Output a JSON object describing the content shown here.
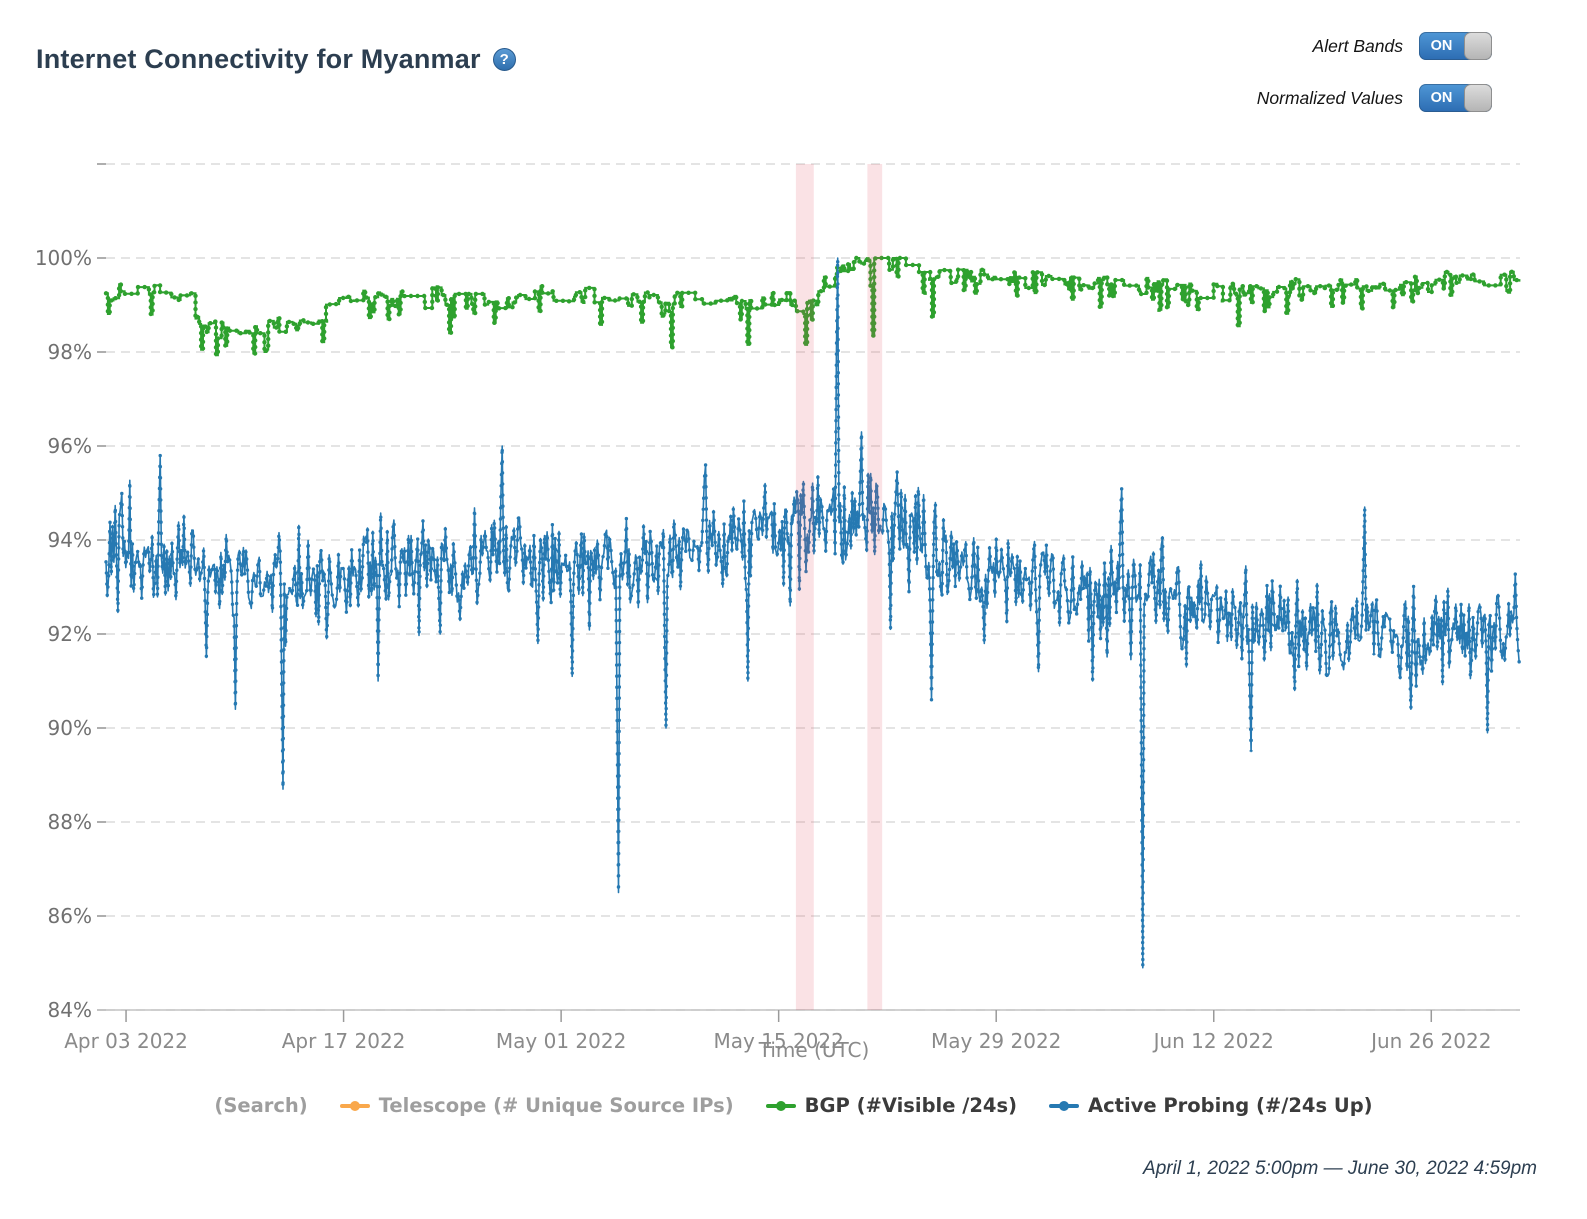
{
  "header": {
    "title": "Internet Connectivity for Myanmar",
    "help_text": "?"
  },
  "toggles": [
    {
      "label": "Alert Bands",
      "state": "ON"
    },
    {
      "label": "Normalized Values",
      "state": "ON"
    }
  ],
  "legend": [
    {
      "label": "(Search)",
      "text_color": "#9e9e9e",
      "marker_color": null
    },
    {
      "label": "Telescope (# Unique Source IPs)",
      "text_color": "#9e9e9e",
      "marker_color": "#f9a84c"
    },
    {
      "label": "BGP (#Visible /24s)",
      "text_color": "#3b3b3b",
      "marker_color": "#2ea12e"
    },
    {
      "label": "Active Probing (#/24s Up)",
      "text_color": "#3b3b3b",
      "marker_color": "#2679b2"
    }
  ],
  "footer": {
    "time_range": "April 1, 2022 5:00pm — June 30, 2022 4:59pm"
  },
  "chart_data": {
    "type": "line",
    "title": "Internet Connectivity for Myanmar",
    "xlabel": "Time (UTC)",
    "ylabel": "",
    "x_range_days": 91,
    "x_start": "Apr 1 2022 5:00pm UTC",
    "x_end": "Jun 30 2022 4:59pm UTC",
    "ylim": [
      84,
      102.2
    ],
    "grid": "dashed-horizontal",
    "legend_position": "bottom",
    "x_ticks": [
      {
        "label": "Apr 03 2022",
        "day": 1.29
      },
      {
        "label": "Apr 17 2022",
        "day": 15.29
      },
      {
        "label": "May 01 2022",
        "day": 29.29
      },
      {
        "label": "May 15 2022",
        "day": 43.29
      },
      {
        "label": "May 29 2022",
        "day": 57.29
      },
      {
        "label": "Jun 12 2022",
        "day": 71.29
      },
      {
        "label": "Jun 26 2022",
        "day": 85.29
      }
    ],
    "y_ticks": [
      {
        "label": "84%",
        "value": 84
      },
      {
        "label": "86%",
        "value": 86
      },
      {
        "label": "88%",
        "value": 88
      },
      {
        "label": "90%",
        "value": 90
      },
      {
        "label": "92%",
        "value": 92
      },
      {
        "label": "94%",
        "value": 94
      },
      {
        "label": "96%",
        "value": 96
      },
      {
        "label": "98%",
        "value": 98
      },
      {
        "label": "100%",
        "value": 100
      },
      {
        "label": "",
        "value": 102
      }
    ],
    "alert_bands": [
      {
        "start_day": 44.4,
        "end_day": 45.55,
        "color": "rgba(225,75,95,0.16)"
      },
      {
        "start_day": 49.0,
        "end_day": 49.95,
        "color": "rgba(225,75,95,0.16)"
      }
    ],
    "series": [
      {
        "name": "Telescope (# Unique Source IPs)",
        "color": "#f9a84c",
        "visible": false,
        "style": "line",
        "baseline": [],
        "events": []
      },
      {
        "name": "BGP (#Visible /24s)",
        "color": "#2ea12e",
        "visible": true,
        "style": "step",
        "seed": 99,
        "noise_amp": 0.13,
        "baseline": [
          [
            0,
            99.25
          ],
          [
            5.4,
            99.2
          ],
          [
            5.8,
            98.6
          ],
          [
            8,
            98.5
          ],
          [
            10,
            98.5
          ],
          [
            12,
            98.55
          ],
          [
            13.2,
            98.6
          ],
          [
            14,
            99.05
          ],
          [
            16,
            99.15
          ],
          [
            20,
            99.2
          ],
          [
            24,
            99.1
          ],
          [
            28,
            99.2
          ],
          [
            32,
            99.15
          ],
          [
            36,
            99.1
          ],
          [
            40,
            99.15
          ],
          [
            43,
            99.1
          ],
          [
            44.6,
            98.95
          ],
          [
            45.5,
            99.05
          ],
          [
            46.2,
            99.45
          ],
          [
            47.2,
            99.8
          ],
          [
            47.9,
            99.95
          ],
          [
            49.0,
            100.0
          ],
          [
            50.0,
            99.95
          ],
          [
            51.8,
            99.95
          ],
          [
            52.6,
            99.8
          ],
          [
            53.4,
            99.65
          ],
          [
            55,
            99.6
          ],
          [
            58,
            99.6
          ],
          [
            61,
            99.5
          ],
          [
            64,
            99.45
          ],
          [
            66,
            99.4
          ],
          [
            68,
            99.35
          ],
          [
            70,
            99.3
          ],
          [
            72,
            99.3
          ],
          [
            74,
            99.3
          ],
          [
            76,
            99.35
          ],
          [
            78,
            99.35
          ],
          [
            80,
            99.4
          ],
          [
            82,
            99.4
          ],
          [
            84,
            99.45
          ],
          [
            86,
            99.5
          ],
          [
            88,
            99.55
          ],
          [
            90,
            99.6
          ],
          [
            91,
            99.65
          ]
        ],
        "events": [
          [
            6.1,
            98.05
          ],
          [
            22.1,
            98.4
          ],
          [
            36.4,
            98.1
          ],
          [
            41.3,
            98.15
          ],
          [
            45.0,
            98.15
          ],
          [
            49.3,
            98.35
          ],
          [
            53.1,
            98.75
          ],
          [
            58.5,
            99.2
          ],
          [
            64.0,
            98.95
          ],
          [
            67.8,
            98.9
          ],
          [
            72.8,
            98.55
          ],
          [
            79.5,
            99.05
          ],
          [
            86.5,
            99.2
          ]
        ]
      },
      {
        "name": "Active Probing (#/24s Up)",
        "color": "#2679b2",
        "visible": true,
        "style": "line",
        "seed": 1234,
        "noise_amp": 0.62,
        "baseline": [
          [
            0,
            93.8
          ],
          [
            2,
            93.5
          ],
          [
            5,
            93.4
          ],
          [
            8,
            93.3
          ],
          [
            13,
            93.4
          ],
          [
            17,
            93.4
          ],
          [
            20,
            93.5
          ],
          [
            24,
            93.6
          ],
          [
            28,
            93.6
          ],
          [
            31,
            93.5
          ],
          [
            34,
            93.5
          ],
          [
            37,
            93.8
          ],
          [
            40,
            94.0
          ],
          [
            43,
            94.2
          ],
          [
            45,
            94.3
          ],
          [
            47,
            94.5
          ],
          [
            49,
            94.5
          ],
          [
            51,
            94.4
          ],
          [
            52,
            94.2
          ],
          [
            54,
            93.7
          ],
          [
            56,
            93.4
          ],
          [
            58,
            93.2
          ],
          [
            60,
            93.0
          ],
          [
            62,
            92.9
          ],
          [
            64,
            92.9
          ],
          [
            67,
            92.8
          ],
          [
            70,
            92.7
          ],
          [
            72,
            92.5
          ],
          [
            74,
            92.4
          ],
          [
            76,
            92.2
          ],
          [
            78,
            92.0
          ],
          [
            80,
            92.0
          ],
          [
            82,
            91.9
          ],
          [
            84,
            91.9
          ],
          [
            86,
            92.0
          ],
          [
            88,
            92.1
          ],
          [
            90,
            92.3
          ],
          [
            91,
            92.7
          ]
        ],
        "events": [
          [
            1.0,
            95.0
          ],
          [
            3.5,
            95.8
          ],
          [
            6.5,
            91.5
          ],
          [
            8.3,
            90.4
          ],
          [
            11.4,
            88.7
          ],
          [
            14.2,
            91.9
          ],
          [
            17.5,
            91.0
          ],
          [
            21.5,
            92.0
          ],
          [
            25.5,
            96.0
          ],
          [
            27.8,
            91.8
          ],
          [
            30.0,
            91.1
          ],
          [
            33.0,
            86.5
          ],
          [
            36.0,
            90.0
          ],
          [
            38.6,
            95.6
          ],
          [
            41.3,
            91.0
          ],
          [
            44.0,
            92.6
          ],
          [
            47.1,
            100.0
          ],
          [
            48.6,
            96.3
          ],
          [
            50.5,
            92.1
          ],
          [
            53.1,
            90.6
          ],
          [
            56.5,
            91.8
          ],
          [
            60.0,
            91.2
          ],
          [
            63.5,
            91.0
          ],
          [
            65.4,
            95.1
          ],
          [
            66.7,
            84.9
          ],
          [
            69.5,
            91.3
          ],
          [
            73.7,
            89.5
          ],
          [
            76.5,
            90.8
          ],
          [
            81.0,
            94.7
          ],
          [
            84.0,
            90.4
          ],
          [
            88.9,
            89.9
          ]
        ]
      }
    ]
  }
}
